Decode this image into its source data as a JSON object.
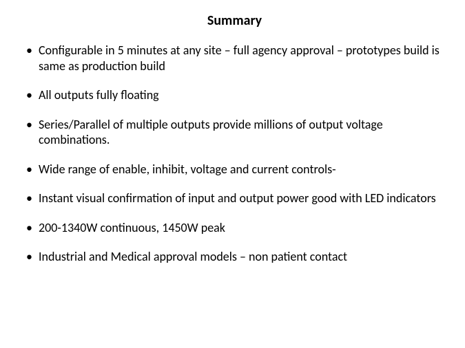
{
  "title": "Summary",
  "bullets": [
    "Configurable in 5 minutes at any site – full agency approval – prototypes build is same as production build",
    "All outputs fully floating",
    "Series/Parallel of multiple outputs provide millions of output voltage combinations.",
    "Wide range of enable, inhibit, voltage and current controls-",
    "Instant visual confirmation of input and output power good with LED indicators",
    "200-1340W continuous, 1450W peak",
    "Industrial and Medical approval models – non patient contact"
  ],
  "colors": {
    "background": "#ffffff",
    "text": "#000000"
  },
  "typography": {
    "title_fontsize": 20,
    "title_weight": "bold",
    "body_fontsize": 18,
    "font_family": "Calibri"
  }
}
